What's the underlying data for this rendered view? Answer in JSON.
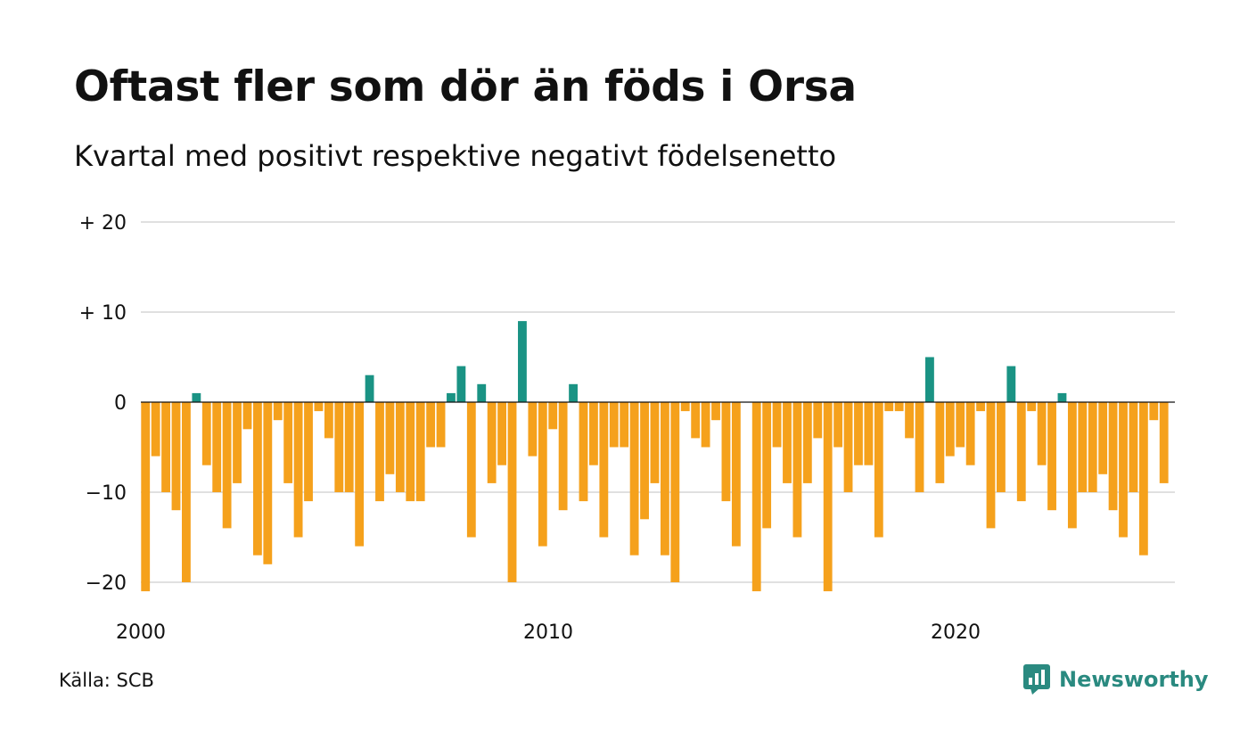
{
  "title": "Oftast fler som dör än föds i Orsa",
  "subtitle": "Kvartal med positivt respektive negativt födelsenetto",
  "source": "Källa: SCB",
  "brand": {
    "name": "Newsworthy",
    "icon": "newsworthy-logo-icon",
    "color": "#2a8a80"
  },
  "colors": {
    "positive": "#1a9384",
    "negative": "#f5a11c",
    "grid": "#e0e0e0",
    "zero_line": "#111111"
  },
  "chart_data": {
    "type": "bar",
    "title": "Oftast fler som dör än föds i Orsa",
    "subtitle": "Kvartal med positivt respektive negativt födelsenetto",
    "xlabel": "",
    "ylabel": "",
    "ylim": [
      -23,
      20
    ],
    "xlim": [
      2000,
      2025.25
    ],
    "grid": true,
    "y_ticks": [
      {
        "value": 20,
        "label": "+ 20"
      },
      {
        "value": 10,
        "label": "+ 10"
      },
      {
        "value": 0,
        "label": "0"
      },
      {
        "value": -10,
        "label": "−10"
      },
      {
        "value": -20,
        "label": "−20"
      }
    ],
    "x_ticks": [
      {
        "value": 2000,
        "label": "2000"
      },
      {
        "value": 2010,
        "label": "2010"
      },
      {
        "value": 2020,
        "label": "2020"
      }
    ],
    "start_year": 2000,
    "quarters_per_year": 4,
    "values": [
      -21,
      -6,
      -10,
      -12,
      -20,
      1,
      -7,
      -10,
      -14,
      -9,
      -3,
      -17,
      -18,
      -2,
      -9,
      -15,
      -11,
      -1,
      -4,
      -10,
      -10,
      -16,
      3,
      -11,
      -8,
      -10,
      -11,
      -11,
      -5,
      -5,
      1,
      4,
      -15,
      2,
      -9,
      -7,
      -20,
      9,
      -6,
      -16,
      -3,
      -12,
      2,
      -11,
      -7,
      -15,
      -5,
      -5,
      -17,
      -13,
      -9,
      -17,
      -20,
      -1,
      -4,
      -5,
      -2,
      -11,
      -16,
      0,
      -21,
      -14,
      -5,
      -9,
      -15,
      -9,
      -4,
      -21,
      -5,
      -10,
      -7,
      -7,
      -15,
      -1,
      -1,
      -4,
      -10,
      5,
      -9,
      -6,
      -5,
      -7,
      -1,
      -14,
      -10,
      4,
      -11,
      -1,
      -7,
      -12,
      1,
      -14,
      -10,
      -10,
      -8,
      -12,
      -15,
      -10,
      -17,
      -2,
      -9
    ]
  }
}
